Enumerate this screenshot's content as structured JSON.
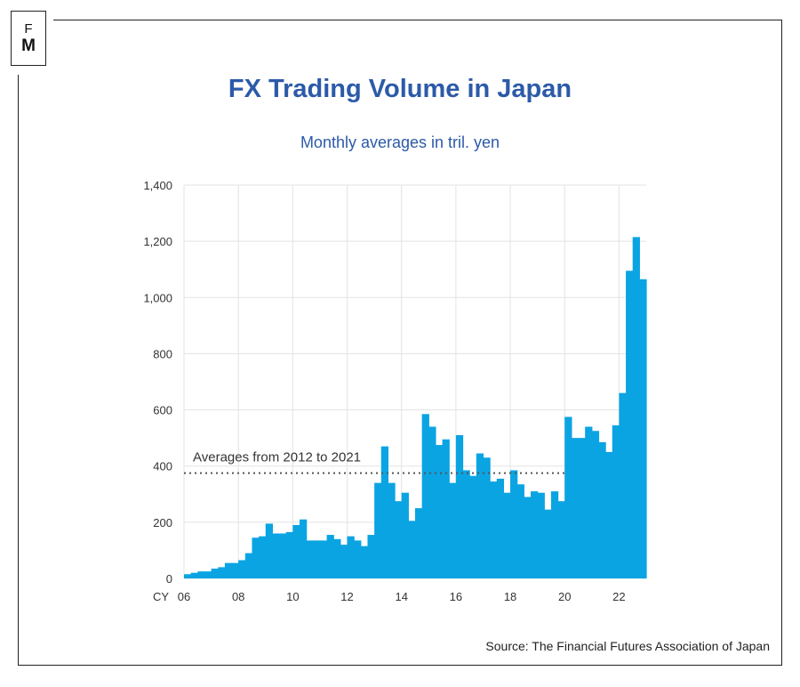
{
  "logo": {
    "top": "F",
    "bottom": "M"
  },
  "title": "FX Trading Volume in Japan",
  "subtitle": "Monthly averages in tril. yen",
  "source": "Source: The Financial Futures Association of Japan",
  "colors": {
    "bar": "#0aa4e3",
    "title": "#2c5aa8",
    "grid": "#e3e3e3",
    "avg_line": "#555555"
  },
  "chart_data": {
    "type": "bar",
    "title": "FX Trading Volume in Japan",
    "subtitle": "Monthly averages in tril. yen",
    "xlabel": "CY",
    "ylabel": "",
    "ylim": [
      0,
      1400
    ],
    "yticks": [
      0,
      200,
      400,
      600,
      800,
      1000,
      1200,
      1400
    ],
    "ytick_labels": [
      "0",
      "200",
      "400",
      "600",
      "800",
      "1,000",
      "1,200",
      "1,400"
    ],
    "xlim": [
      2006,
      2023
    ],
    "xticks": [
      2006,
      2008,
      2010,
      2012,
      2014,
      2016,
      2018,
      2020,
      2022
    ],
    "xtick_labels": [
      "06",
      "08",
      "10",
      "12",
      "14",
      "16",
      "18",
      "20",
      "22"
    ],
    "grid": true,
    "bar_period": "quarter",
    "x": [
      2006.0,
      2006.25,
      2006.5,
      2006.75,
      2007.0,
      2007.25,
      2007.5,
      2007.75,
      2008.0,
      2008.25,
      2008.5,
      2008.75,
      2009.0,
      2009.25,
      2009.5,
      2009.75,
      2010.0,
      2010.25,
      2010.5,
      2010.75,
      2011.0,
      2011.25,
      2011.5,
      2011.75,
      2012.0,
      2012.25,
      2012.5,
      2012.75,
      2013.0,
      2013.25,
      2013.5,
      2013.75,
      2014.0,
      2014.25,
      2014.5,
      2014.75,
      2015.0,
      2015.25,
      2015.5,
      2015.75,
      2016.0,
      2016.25,
      2016.5,
      2016.75,
      2017.0,
      2017.25,
      2017.5,
      2017.75,
      2018.0,
      2018.25,
      2018.5,
      2018.75,
      2019.0,
      2019.25,
      2019.5,
      2019.75,
      2020.0,
      2020.25,
      2020.5,
      2020.75,
      2021.0,
      2021.25,
      2021.5,
      2021.75,
      2022.0,
      2022.25,
      2022.5,
      2022.75
    ],
    "values": [
      15,
      20,
      25,
      25,
      35,
      40,
      55,
      55,
      65,
      90,
      145,
      150,
      195,
      160,
      160,
      165,
      190,
      210,
      135,
      135,
      135,
      155,
      140,
      120,
      150,
      135,
      115,
      155,
      340,
      470,
      340,
      275,
      305,
      205,
      250,
      585,
      540,
      475,
      495,
      340,
      510,
      385,
      365,
      445,
      430,
      345,
      355,
      305,
      385,
      335,
      290,
      310,
      305,
      245,
      310,
      275,
      575,
      500,
      500,
      540,
      525,
      485,
      450,
      545,
      660,
      1095,
      1215,
      1065
    ],
    "series": [
      {
        "values_ref": "values"
      }
    ],
    "annotations": [
      {
        "text": "Averages from 2012 to 2021",
        "y": 375,
        "x_start": 2006,
        "x_end": 2020,
        "style": "dotted"
      }
    ]
  }
}
